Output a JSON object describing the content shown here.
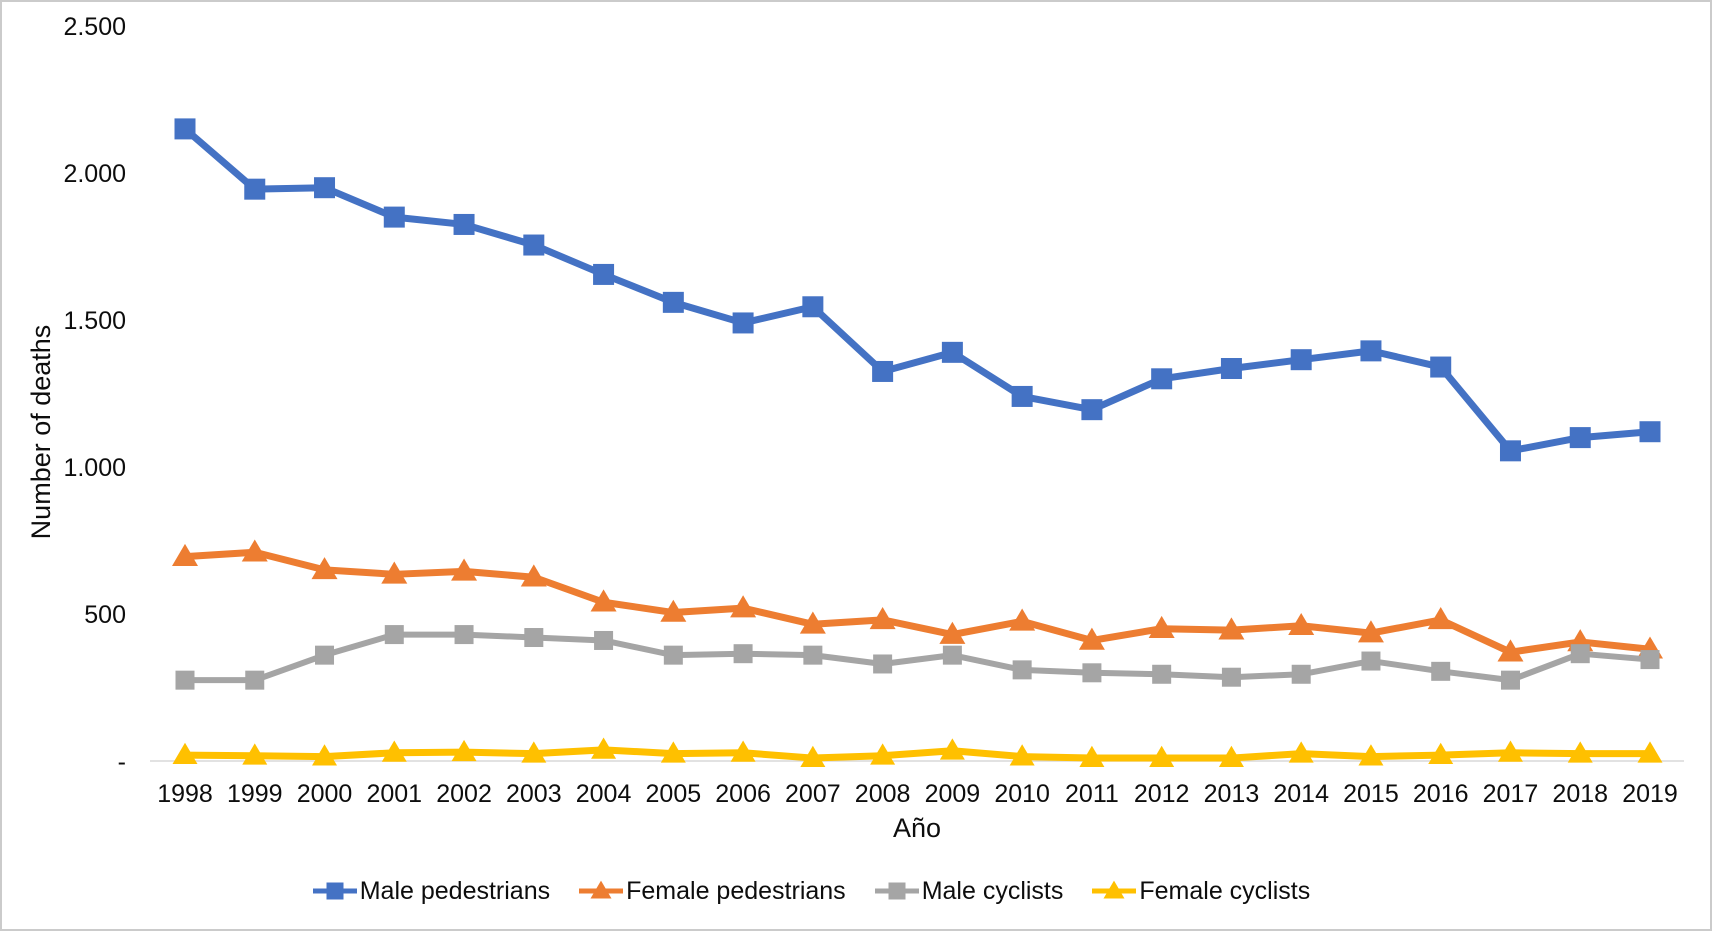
{
  "figure": {
    "colors": {
      "axis_line": "#d9d9d9",
      "text": "#0d0d0d",
      "border": "#cbcbcb",
      "blue": "#4472C4",
      "orange": "#ED7D31",
      "gray": "#A5A5A5",
      "yellow": "#FFC000"
    },
    "y_axis": {
      "title": "Number of deaths",
      "ticks": [
        {
          "label": "2.500",
          "value": 2500
        },
        {
          "label": "2.000",
          "value": 2000
        },
        {
          "label": "1.500",
          "value": 1500
        },
        {
          "label": "1.000",
          "value": 1000
        },
        {
          "label": "500",
          "value": 500
        },
        {
          "label": "-",
          "value": 0
        }
      ]
    },
    "x_axis": {
      "title": "Año"
    },
    "legend": [
      {
        "label": "Male pedestrians",
        "color": "#4472C4",
        "marker": "square"
      },
      {
        "label": "Female pedestrians",
        "color": "#ED7D31",
        "marker": "triangle"
      },
      {
        "label": "Male cyclists",
        "color": "#A5A5A5",
        "marker": "square"
      },
      {
        "label": "Female cyclists",
        "color": "#FFC000",
        "marker": "triangle"
      }
    ]
  },
  "chart_data": {
    "type": "line",
    "x": [
      1998,
      1999,
      2000,
      2001,
      2002,
      2003,
      2004,
      2005,
      2006,
      2007,
      2008,
      2009,
      2010,
      2011,
      2012,
      2013,
      2014,
      2015,
      2016,
      2017,
      2018,
      2019
    ],
    "xlabel": "Año",
    "ylabel": "Number of deaths",
    "ylim": [
      0,
      2500
    ],
    "y_tick_interval": 500,
    "grid": false,
    "legend_position": "bottom",
    "series": [
      {
        "name": "Male pedestrians",
        "color": "#4472C4",
        "marker": "square",
        "marker_size": 21,
        "line_width": 7,
        "values": [
          2150,
          1945,
          1950,
          1850,
          1825,
          1755,
          1655,
          1560,
          1490,
          1545,
          1325,
          1390,
          1240,
          1195,
          1300,
          1335,
          1365,
          1395,
          1340,
          1055,
          1100,
          1120
        ]
      },
      {
        "name": "Female pedestrians",
        "color": "#ED7D31",
        "marker": "triangle",
        "marker_size": 26,
        "line_width": 7,
        "values": [
          695,
          710,
          650,
          635,
          645,
          625,
          540,
          505,
          520,
          465,
          480,
          430,
          475,
          410,
          450,
          445,
          460,
          435,
          480,
          370,
          405,
          380
        ]
      },
      {
        "name": "Male cyclists",
        "color": "#A5A5A5",
        "marker": "square",
        "marker_size": 19,
        "line_width": 6,
        "values": [
          275,
          275,
          360,
          430,
          430,
          420,
          410,
          360,
          365,
          360,
          330,
          360,
          310,
          300,
          295,
          285,
          295,
          340,
          305,
          275,
          365,
          345
        ]
      },
      {
        "name": "Female cyclists",
        "color": "#FFC000",
        "marker": "triangle",
        "marker_size": 25,
        "line_width": 7,
        "values": [
          20,
          18,
          15,
          28,
          30,
          25,
          38,
          25,
          28,
          10,
          18,
          35,
          15,
          10,
          10,
          10,
          25,
          15,
          20,
          28,
          25,
          25
        ]
      }
    ]
  }
}
